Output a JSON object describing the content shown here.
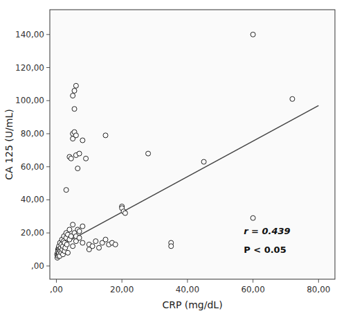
{
  "chart_data": {
    "type": "scatter",
    "xlabel": "CRP (mg/dL)",
    "ylabel": "CA 125 (U/mL)",
    "annotations": [
      "r = 0.439",
      "P < 0.05"
    ],
    "xlim": [
      -2,
      85
    ],
    "ylim": [
      -8,
      155
    ],
    "xticks": [
      {
        "value": 0,
        "label": ",00"
      },
      {
        "value": 20,
        "label": "20,00"
      },
      {
        "value": 40,
        "label": "40,00"
      },
      {
        "value": 60,
        "label": "60,00"
      },
      {
        "value": 80,
        "label": "80,00"
      }
    ],
    "yticks": [
      {
        "value": 0,
        "label": ",00"
      },
      {
        "value": 20,
        "label": "20,00"
      },
      {
        "value": 40,
        "label": "40,00"
      },
      {
        "value": 60,
        "label": "60,00"
      },
      {
        "value": 80,
        "label": "80,00"
      },
      {
        "value": 100,
        "label": "100,00"
      },
      {
        "value": 120,
        "label": "120,00"
      },
      {
        "value": 140,
        "label": "140,00"
      }
    ],
    "series": [
      {
        "type": "scatter",
        "marker": "circle",
        "color": "#222222",
        "x": [
          0.2,
          0.3,
          0.4,
          0.5,
          0.5,
          0.6,
          0.7,
          0.7,
          0.8,
          0.8,
          1.0,
          1.0,
          1.1,
          1.2,
          1.3,
          1.5,
          1.5,
          1.7,
          1.8,
          2.0,
          2.0,
          2.2,
          2.3,
          2.5,
          2.5,
          2.7,
          3.0,
          3.0,
          3.2,
          3.5,
          3.5,
          4.0,
          4.0,
          4.5,
          5.0,
          5.0,
          5.5,
          6.0,
          6.0,
          6.5,
          7.0,
          7.0,
          8.0,
          8.0,
          3.0,
          4.0,
          4.5,
          5.0,
          5.5,
          5.0,
          6.0,
          6.0,
          6.5,
          7.0,
          8.0,
          9.0,
          5.0,
          5.5,
          5.5,
          6.0,
          10.0,
          10.0,
          11.0,
          12.0,
          13.0,
          14.0,
          15.0,
          16.0,
          15.0,
          17.0,
          18.0,
          20.0,
          20.0,
          20.5,
          21.0,
          28.0,
          35.0,
          35.0,
          45.0,
          60.0,
          60.0,
          72.0
        ],
        "values": [
          7,
          5,
          8,
          10,
          6,
          9,
          11,
          7,
          12,
          8,
          10,
          6,
          14,
          9,
          11,
          8,
          13,
          16,
          10,
          12,
          7,
          15,
          18,
          9,
          14,
          11,
          20,
          17,
          13,
          8,
          19,
          22,
          16,
          18,
          25,
          12,
          20,
          18,
          15,
          22,
          17,
          21,
          24,
          14,
          46,
          66,
          65,
          80,
          81,
          77,
          79,
          67,
          59,
          68,
          76,
          65,
          103,
          106,
          95,
          109,
          10,
          13,
          12,
          15,
          11,
          14,
          16,
          13,
          79,
          14,
          13,
          36,
          35,
          33,
          32,
          68,
          14,
          12,
          63,
          140,
          29,
          101
        ]
      },
      {
        "type": "line",
        "line_style": "solid",
        "color": "#444444",
        "x": [
          0,
          80
        ],
        "values": [
          11,
          97
        ]
      }
    ]
  }
}
